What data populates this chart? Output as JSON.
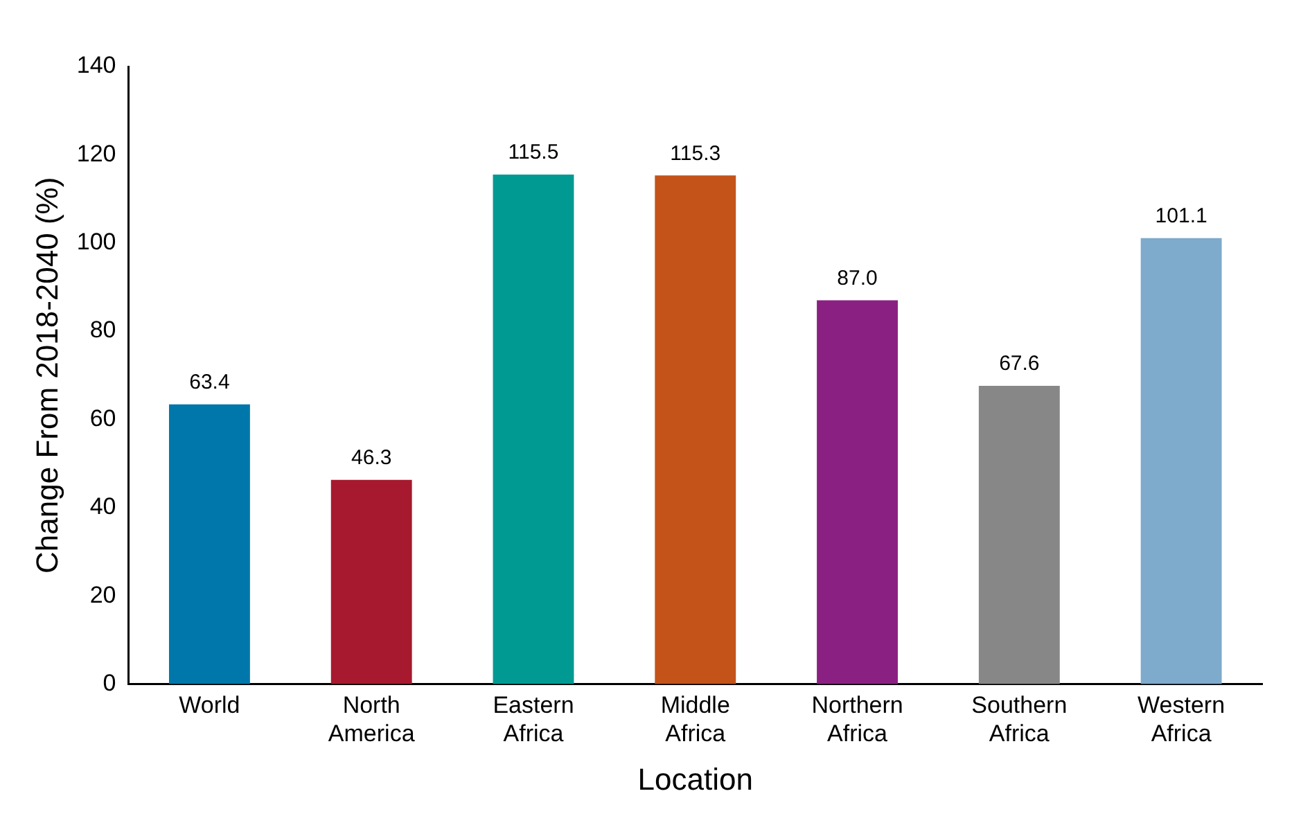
{
  "chart_data": {
    "type": "bar",
    "xlabel": "Location",
    "ylabel": "Change From 2018-2040 (%)",
    "categories": [
      "World",
      "North America",
      "Eastern Africa",
      "Middle Africa",
      "Northern Africa",
      "Southern Africa",
      "Western Africa"
    ],
    "values": [
      63.4,
      46.3,
      115.5,
      115.3,
      87.0,
      67.6,
      101.1
    ],
    "colors": [
      "#0077aa",
      "#a6192e",
      "#009a93",
      "#c4531a",
      "#8b2083",
      "#878787",
      "#7eaacb"
    ],
    "ylim": [
      0,
      140
    ],
    "yticks": [
      0,
      20,
      40,
      60,
      80,
      100,
      120,
      140
    ],
    "value_labels": [
      "63.4",
      "46.3",
      "115.5",
      "115.3",
      "87.0",
      "67.6",
      "101.1"
    ],
    "grid": false,
    "legend": false
  }
}
